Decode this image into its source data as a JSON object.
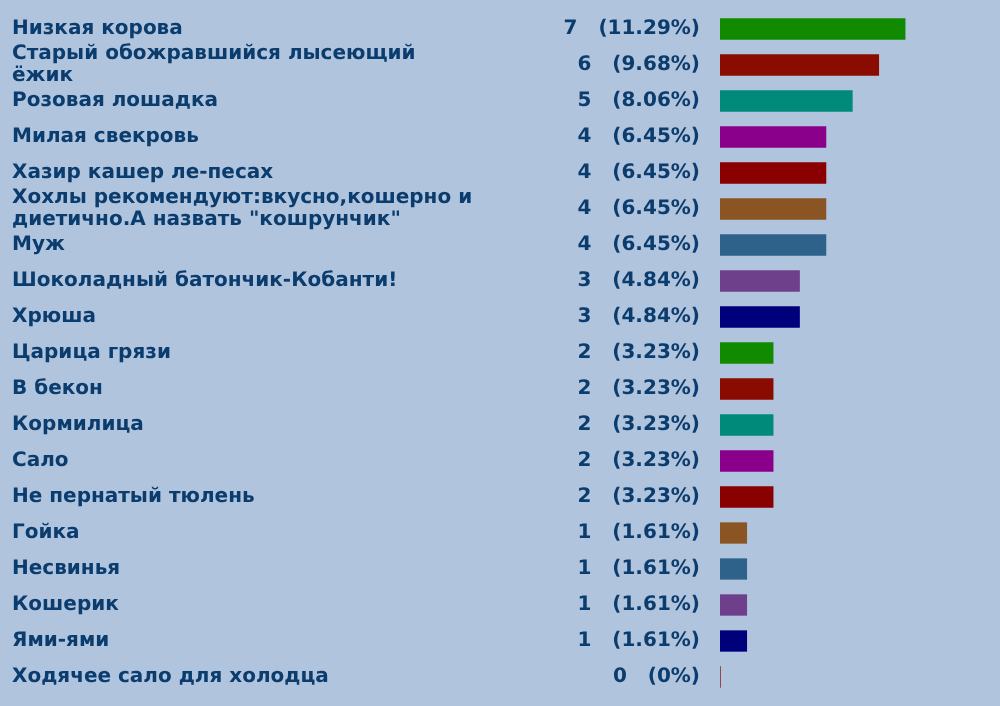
{
  "chart_data": {
    "type": "bar",
    "orientation": "horizontal",
    "categories": [
      "Низкая корова",
      "Старый обожравшийся лысеющий ёжик",
      "Розовая лошадка",
      "Милая свекровь",
      "Хазир кашер ле-песах",
      "Хохлы рекомендуют:вкусно,кошерно и диетично.А назвать \"кошрунчик\"",
      "Муж",
      "Шоколадный батончик-Кобанти!",
      "Хрюша",
      "Царица грязи",
      "В бекон",
      "Кормилица",
      "Сало",
      "Не пернатый тюлень",
      "Гойка",
      "Несвинья",
      "Кошерик",
      "Ями-ями",
      "Ходячее сало для холодца"
    ],
    "values": [
      7,
      6,
      5,
      4,
      4,
      4,
      4,
      3,
      3,
      2,
      2,
      2,
      2,
      2,
      1,
      1,
      1,
      1,
      0
    ],
    "value_labels": [
      "7  (11.29%)",
      "6  (9.68%)",
      "5  (8.06%)",
      "4  (6.45%)",
      "4  (6.45%)",
      "4  (6.45%)",
      "4  (6.45%)",
      "3  (4.84%)",
      "3  (4.84%)",
      "2  (3.23%)",
      "2  (3.23%)",
      "2  (3.23%)",
      "2  (3.23%)",
      "2  (3.23%)",
      "1  (1.61%)",
      "1  (1.61%)",
      "1  (1.61%)",
      "1  (1.61%)",
      "0  (0%)"
    ],
    "colors": [
      "#128a00",
      "#8a0c00",
      "#008a7a",
      "#8a008a",
      "#8a0000",
      "#8a5522",
      "#2e628a",
      "#6e3f8a",
      "#00007a",
      "#128a00",
      "#8a0c00",
      "#008a7a",
      "#8a008a",
      "#8a0000",
      "#8a5522",
      "#2e628a",
      "#6e3f8a",
      "#00007a",
      "#8a0000"
    ],
    "grid": false,
    "legend": false
  }
}
